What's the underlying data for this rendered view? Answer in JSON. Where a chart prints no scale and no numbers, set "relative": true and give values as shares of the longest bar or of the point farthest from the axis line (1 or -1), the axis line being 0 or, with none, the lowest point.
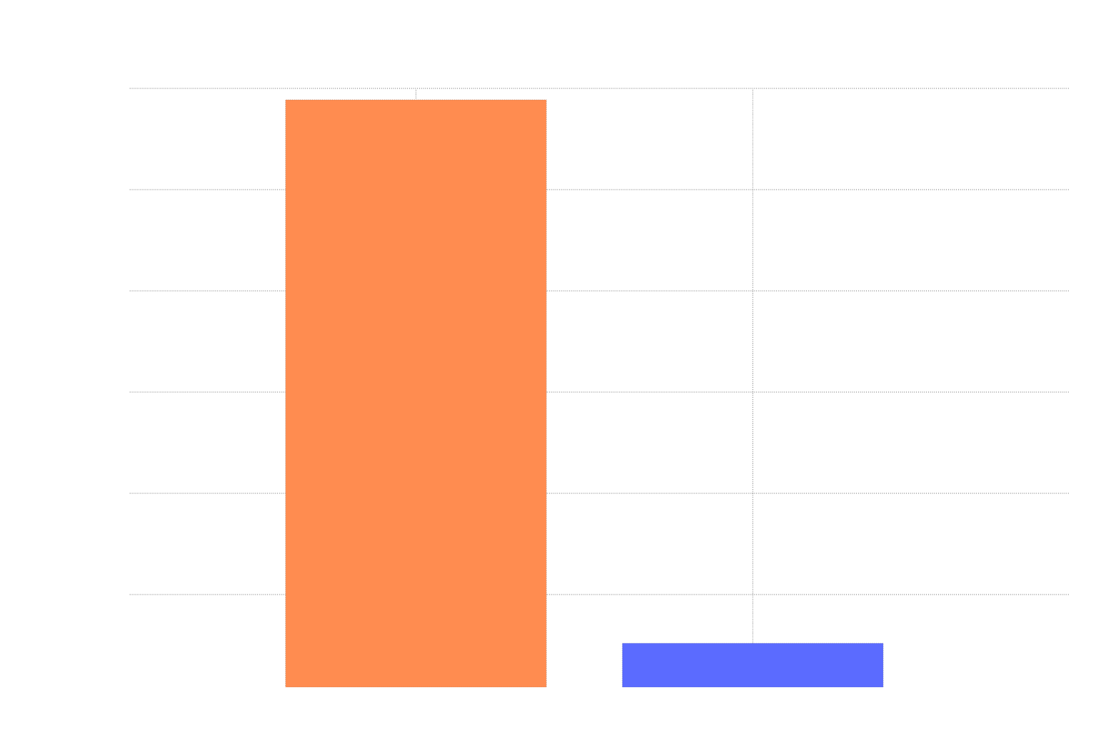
{
  "chart_data": {
    "type": "bar",
    "relative": true,
    "grid": true,
    "categories": [
      null,
      null
    ],
    "values": [
      1,
      0.075
    ],
    "colors": [
      "#ff8c50",
      "#5b6bff"
    ]
  }
}
